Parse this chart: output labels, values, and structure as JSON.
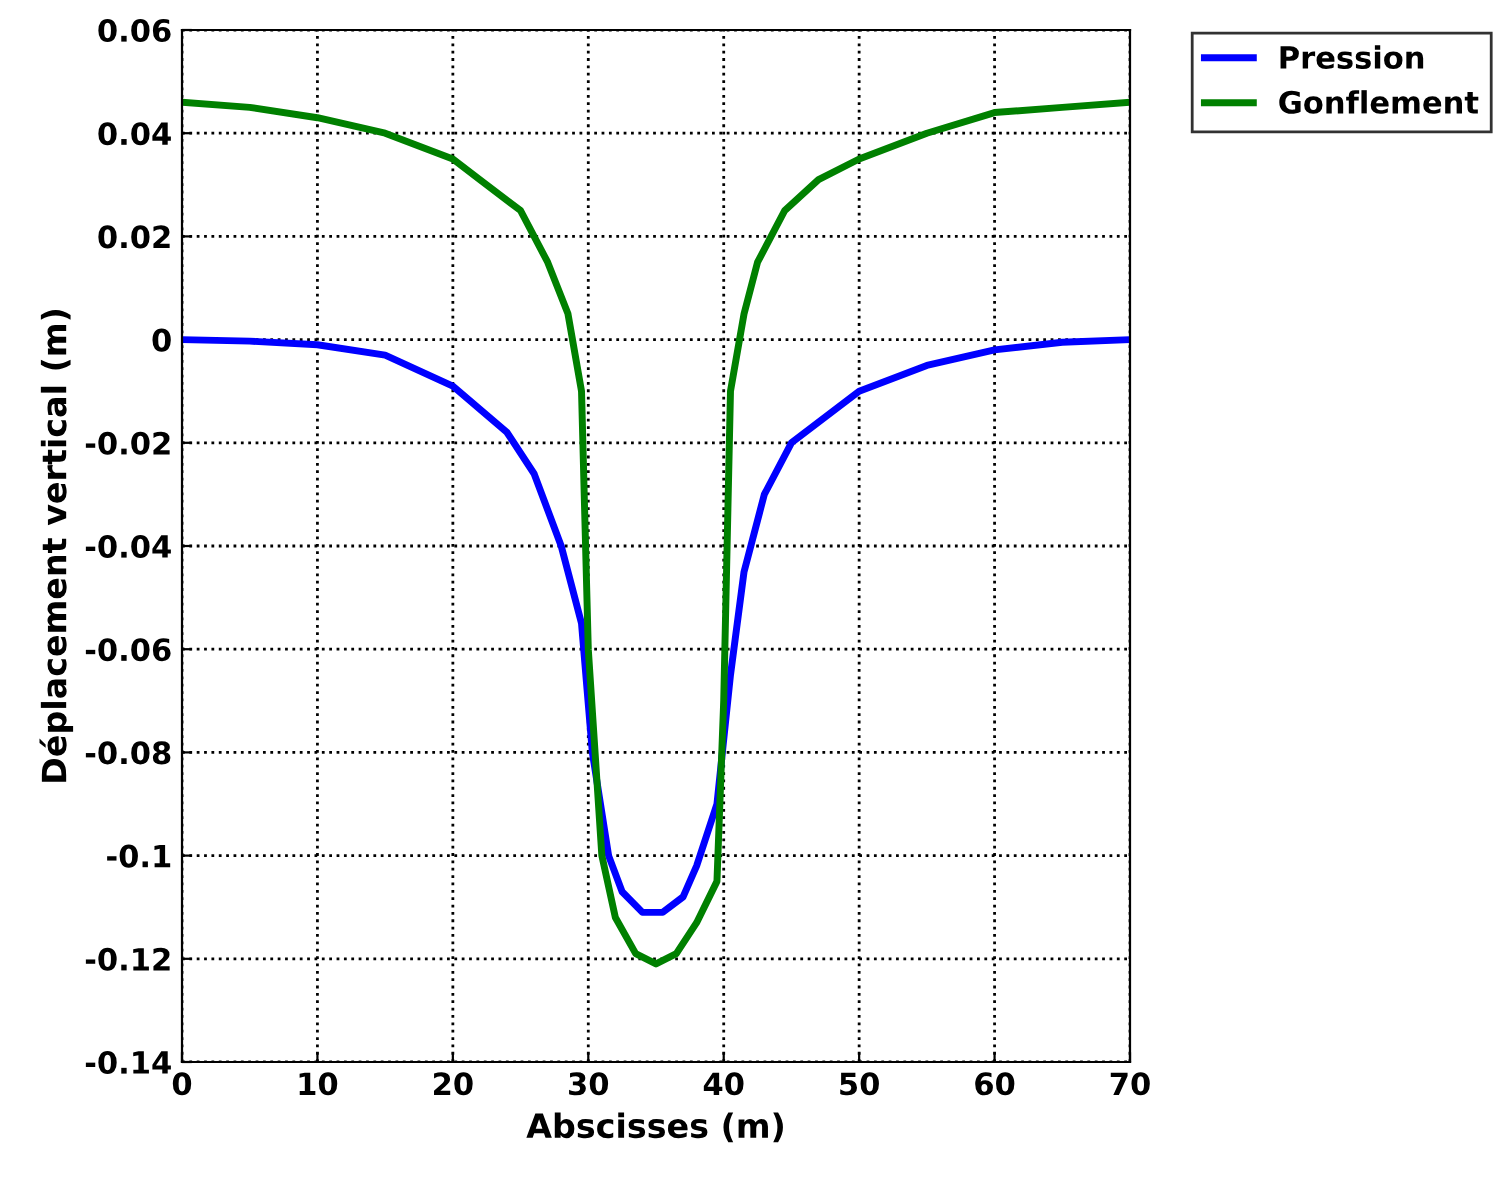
{
  "chart_data": {
    "type": "line",
    "xlabel": "Abscisses (m)",
    "ylabel": "Déplacement vertical (m)",
    "xlim": [
      0,
      70
    ],
    "xticks": [
      0,
      10,
      20,
      30,
      40,
      50,
      60,
      70
    ],
    "ylim": [
      -0.14,
      0.06
    ],
    "yticks": [
      {
        "value": -0.14,
        "label": "-0.14"
      },
      {
        "value": -0.12,
        "label": "-0.12"
      },
      {
        "value": -0.1,
        "label": "-0.1"
      },
      {
        "value": -0.08,
        "label": "-0.08"
      },
      {
        "value": -0.06,
        "label": "-0.06"
      },
      {
        "value": -0.04,
        "label": "-0.04"
      },
      {
        "value": -0.02,
        "label": "-0.02"
      },
      {
        "value": 0,
        "label": "0"
      },
      {
        "value": 0.02,
        "label": "0.02"
      },
      {
        "value": 0.04,
        "label": "0.04"
      },
      {
        "value": 0.06,
        "label": "0.06"
      }
    ],
    "grid": true,
    "legend": "top right",
    "line_style": "solid",
    "marker": "none",
    "series": [
      {
        "name": "Pression",
        "color": "#0000ff",
        "x": [
          0,
          5,
          10,
          15,
          20,
          24,
          26,
          28,
          29.5,
          30.3,
          31.5,
          32.5,
          34,
          35.5,
          37,
          38,
          39.5,
          40.5,
          41.5,
          43,
          45,
          50,
          55,
          60,
          65,
          70
        ],
        "values": [
          0,
          -0.0003,
          -0.001,
          -0.003,
          -0.009,
          -0.018,
          -0.026,
          -0.04,
          -0.055,
          -0.08,
          -0.1,
          -0.107,
          -0.111,
          -0.111,
          -0.108,
          -0.102,
          -0.09,
          -0.065,
          -0.045,
          -0.03,
          -0.02,
          -0.01,
          -0.005,
          -0.002,
          -0.0005,
          0
        ]
      },
      {
        "name": "Gonflement",
        "color": "#008000",
        "x": [
          0,
          5,
          10,
          15,
          20,
          22,
          25,
          27,
          28.5,
          29.5,
          30,
          31,
          32,
          33.5,
          35,
          36.5,
          38,
          39.5,
          40,
          40.5,
          41.5,
          42.5,
          44.5,
          47,
          50,
          55,
          60,
          65,
          70
        ],
        "values": [
          0.046,
          0.045,
          0.043,
          0.04,
          0.035,
          0.031,
          0.025,
          0.015,
          0.005,
          -0.01,
          -0.06,
          -0.1,
          -0.112,
          -0.119,
          -0.121,
          -0.119,
          -0.113,
          -0.105,
          -0.07,
          -0.01,
          0.005,
          0.015,
          0.025,
          0.031,
          0.035,
          0.04,
          0.044,
          0.045,
          0.046
        ]
      }
    ]
  }
}
